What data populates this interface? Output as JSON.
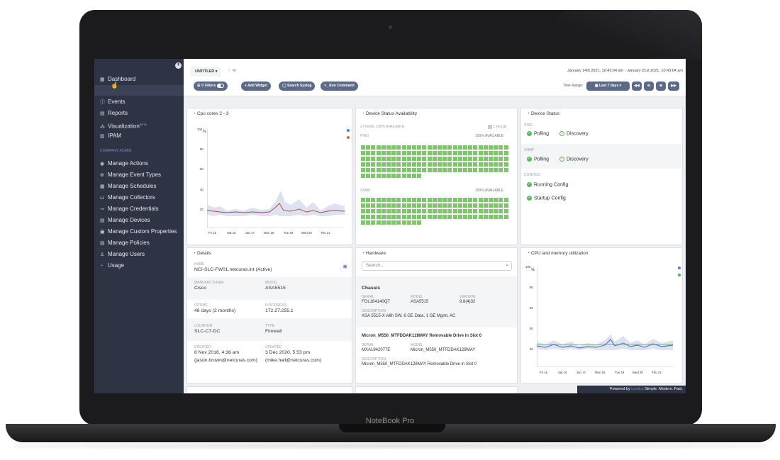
{
  "device": {
    "brand_label": "NoteBook Pro"
  },
  "sidebar": {
    "toggle_icon": "collapse-icon",
    "items_top": [
      {
        "label": "Dashboard",
        "icon": "grid-icon",
        "glyph": "▦"
      },
      {
        "label": "",
        "icon": "pointer-icon",
        "glyph": ""
      },
      {
        "label": "Events",
        "icon": "alert-icon",
        "glyph": "ⓘ"
      },
      {
        "label": "Reports",
        "icon": "report-icon",
        "glyph": "▤"
      },
      {
        "label": "Visualization",
        "badge": "BETA",
        "icon": "visualization-icon",
        "glyph": "⁂"
      },
      {
        "label": "IPAM",
        "icon": "ipam-icon",
        "glyph": "▥"
      }
    ],
    "section_label": "COMPANY ADMIN",
    "items_admin": [
      {
        "label": "Manage Actions",
        "icon": "actions-icon",
        "glyph": "◉"
      },
      {
        "label": "Manage Event Types",
        "icon": "event-types-icon",
        "glyph": "⊕"
      },
      {
        "label": "Manage Schedules",
        "icon": "schedules-icon",
        "glyph": "▦"
      },
      {
        "label": "Manage Collectors",
        "icon": "collectors-icon",
        "glyph": "⊔"
      },
      {
        "label": "Manage Credentials",
        "icon": "credentials-icon",
        "glyph": "⊸"
      },
      {
        "label": "Manage Devices",
        "icon": "devices-icon",
        "glyph": "▤"
      },
      {
        "label": "Manage Custom Properties",
        "icon": "properties-icon",
        "glyph": "▣"
      },
      {
        "label": "Manage Policies",
        "icon": "policies-icon",
        "glyph": "▤"
      },
      {
        "label": "Manage Users",
        "icon": "users-icon",
        "glyph": "♙"
      },
      {
        "label": "Usage",
        "icon": "usage-icon",
        "glyph": "◔"
      }
    ]
  },
  "topbar": {
    "tab_label": "UNTITLED ▾",
    "tab_icons": "♀ ≪",
    "date_range": "January 14th 2021, 10:43:04 am - January 21st 2021, 10:43:04 am",
    "buttons": {
      "filters": "☰ ▽ Filters",
      "add_widget": "+ Add Widget",
      "search_syslog": "◯ Search Syslog",
      "run_command": ">_ Run Command"
    },
    "time_range_label": "Time Range:",
    "time_range_value": "▦ Last 7 days ▾",
    "nav_buttons": [
      "◀◀",
      "⊖",
      "⊕",
      "▶▶"
    ]
  },
  "cpu_panel": {
    "title": "Cpu cores 2 - 3",
    "unit": "%",
    "y_ticks": [
      "100",
      "80",
      "60",
      "40",
      "20"
    ],
    "x_ticks": [
      "Fri 15",
      "Sat 16",
      "Jan 17",
      "Mon 18",
      "Tue 19",
      "Wed 20",
      "Thu 21"
    ],
    "legend_colors": [
      "#5b7bd5",
      "#c46f3d"
    ]
  },
  "availability_panel": {
    "title": "Device Status Availability",
    "summary": "2 ITEMS: 100% AVAILABLE",
    "legend": "= HOUR",
    "ping_label": "PING",
    "ping_pct": "100% AVAILABLE",
    "snmp_label": "SNMP",
    "snmp_pct": "100% AVAILABLE",
    "cell_color": "#7fc56b"
  },
  "status_panel": {
    "title": "Device Status",
    "ping_label": "PING",
    "ping_items": [
      "Polling",
      "Discovery"
    ],
    "snmp_label": "SNMP",
    "snmp_items": [
      "Polling",
      "Discovery"
    ],
    "configs_label": "CONFIGS",
    "configs_items": [
      "Running Config",
      "Startup Config"
    ]
  },
  "details_panel": {
    "title": "Details",
    "name_label": "NAME",
    "name_value": "NCI-SLC-FW01.netcuras.int (Active)",
    "manufacturer_label": "MANUFACTURER",
    "manufacturer_value": "Cisco",
    "model_label": "MODEL",
    "model_value": "ASA5515",
    "uptime_label": "UPTIME",
    "uptime_value": "48 days (2 months)",
    "ip_label": "IP ADDRESS",
    "ip_value": "172.27.255.1",
    "location_label": "LOCATION",
    "location_value": "SLC-C7-DC",
    "type_label": "TYPE",
    "type_value": "Firewall",
    "created_label": "CREATED",
    "created_value": "8 Nov 2016, 4:38 am",
    "created_by": "(jason.brown@netcuras.com)",
    "updated_label": "UPDATED",
    "updated_value": "3 Dec 2020, 5:53 pm",
    "updated_by": "(mike.hall@netcuras.com)"
  },
  "hardware_panel": {
    "title": "Hardware",
    "search_placeholder": "Search...",
    "chassis": {
      "heading": "Chassis",
      "serial_label": "SERIAL",
      "serial": "FGL164140QT",
      "model_label": "MODEL",
      "model": "ASA5515",
      "version_label": "VERSION",
      "version": "9.8(4)32",
      "desc_label": "DESCRIPTION",
      "desc": "ASA 5515-X with SW, 6 GE Data, 1 GE Mgmt, AC"
    },
    "drive": {
      "heading": "Micron_M550_MTFDDAK128MAY Removable Drive in Slot 0",
      "serial_label": "SERIAL",
      "serial": "MXA1842077E",
      "model_label": "MODEL",
      "model": "Micron_M550_MTFDDAK128MAY",
      "desc_label": "DESCRIPTION",
      "desc": "Micron_M550_MTFDDAK128MAY Removable Drive in Slot 0"
    }
  },
  "util_panel": {
    "title": "CPU and memory utilization",
    "unit": "%",
    "y_ticks": [
      "100",
      "80",
      "60",
      "40",
      "20"
    ],
    "x_ticks": [
      "Fri 15",
      "Sat 16",
      "Jan 17",
      "Mon 18",
      "Tue 19",
      "Wed 20",
      "Thu 21"
    ],
    "legend_colors": [
      "#5b7bd5",
      "#4caf50"
    ]
  },
  "footer": {
    "powered": "Powered by ",
    "brand": "Lumics",
    "tagline": "  Simple. Modern. Fast."
  }
}
